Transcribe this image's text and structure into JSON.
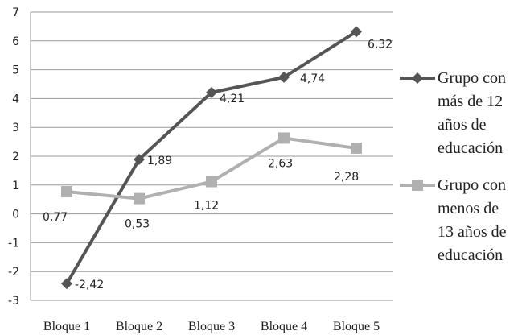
{
  "chart_data": {
    "type": "line",
    "categories": [
      "Bloque 1",
      "Bloque 2",
      "Bloque 3",
      "Bloque 4",
      "Bloque 5"
    ],
    "ylim": [
      -3,
      7
    ],
    "yticks": [
      "7",
      "6",
      "5",
      "4",
      "3",
      "2",
      "1",
      "0",
      "-1",
      "-2",
      "-3"
    ],
    "grid": true,
    "legend_position": "right",
    "series": [
      {
        "name_lines": [
          "Grupo con",
          "más de 12",
          "años de",
          "educación"
        ],
        "values": [
          -2.42,
          1.89,
          4.21,
          4.74,
          6.32
        ],
        "labels": [
          "-2,42",
          "1,89",
          "4,21",
          "4,74",
          "6,32"
        ],
        "color": "#555555",
        "marker": "diamond"
      },
      {
        "name_lines": [
          "Grupo con",
          "menos de",
          "13 años de",
          "educación"
        ],
        "values": [
          0.77,
          0.53,
          1.12,
          2.63,
          2.28
        ],
        "labels": [
          "0,77",
          "0,53",
          "1,12",
          "2,63",
          "2,28"
        ],
        "color": "#b0b0b0",
        "marker": "square"
      }
    ]
  }
}
